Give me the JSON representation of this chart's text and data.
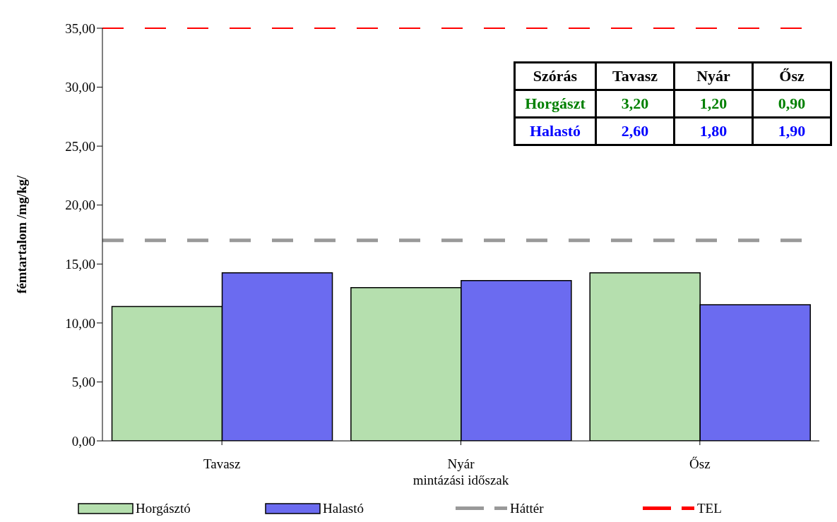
{
  "chart_data": {
    "type": "bar",
    "xlabel": "mintázási időszak",
    "ylabel": "fémtartalom /mg/kg/",
    "categories": [
      "Tavasz",
      "Nyár",
      "Ősz"
    ],
    "series": [
      {
        "name": "Horgásztó",
        "color": "#b5dfae",
        "values": [
          11.4,
          13.0,
          14.25
        ]
      },
      {
        "name": "Halastó",
        "color": "#6b6bf0",
        "values": [
          14.25,
          13.6,
          11.55
        ]
      }
    ],
    "ylim": [
      0,
      35
    ],
    "yticks": [
      {
        "value": 0,
        "label": "0,00"
      },
      {
        "value": 5,
        "label": "5,00"
      },
      {
        "value": 10,
        "label": "10,00"
      },
      {
        "value": 15,
        "label": "15,00"
      },
      {
        "value": 20,
        "label": "20,00"
      },
      {
        "value": 25,
        "label": "25,00"
      },
      {
        "value": 30,
        "label": "30,00"
      },
      {
        "value": 35,
        "label": "35,00"
      }
    ],
    "ref_lines": [
      {
        "axis": "y",
        "value": 17,
        "label": "Háttér",
        "color": "#999999",
        "line_style": "dashed"
      },
      {
        "axis": "y",
        "value": 35,
        "label": "TEL",
        "color": "#ff0000",
        "line_style": "dashed"
      }
    ],
    "annotations": [
      "Szórás",
      "Tavasz",
      "Nyár",
      "Ősz",
      "Horgászt",
      "3,20",
      "1,20",
      "0,90",
      "Halastó",
      "2,60",
      "1,80",
      "1,90"
    ],
    "legend": "bottom"
  }
}
